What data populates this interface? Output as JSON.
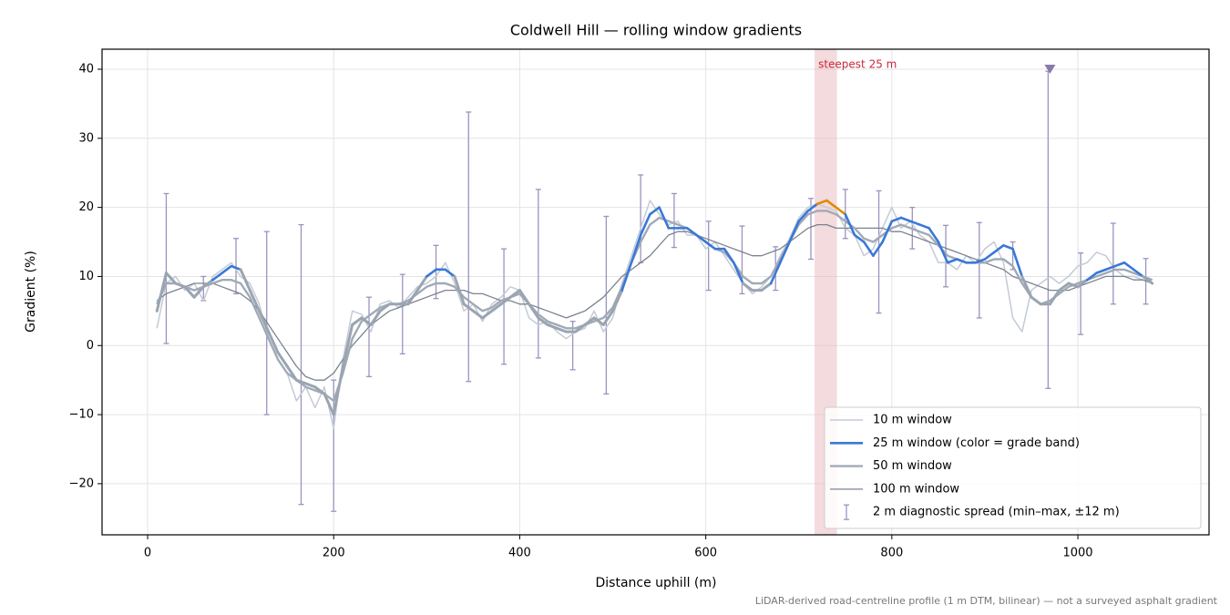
{
  "chart_data": {
    "type": "line",
    "title": "Coldwell Hill — rolling window gradients",
    "x_label": "Distance uphill (m)",
    "y_label": "Gradient (%)",
    "note": "LiDAR-derived road-centreline profile (1 m DTM, bilinear) — not a surveyed asphalt gradient",
    "x": [
      10,
      20,
      30,
      40,
      50,
      60,
      70,
      80,
      90,
      100,
      110,
      120,
      130,
      140,
      150,
      160,
      170,
      180,
      190,
      200,
      210,
      220,
      230,
      240,
      250,
      260,
      270,
      280,
      290,
      300,
      310,
      320,
      330,
      340,
      350,
      360,
      370,
      380,
      390,
      400,
      410,
      420,
      430,
      440,
      450,
      460,
      470,
      480,
      490,
      500,
      510,
      520,
      530,
      540,
      550,
      560,
      570,
      580,
      590,
      600,
      610,
      620,
      630,
      640,
      650,
      660,
      670,
      680,
      690,
      700,
      710,
      720,
      730,
      740,
      750,
      760,
      770,
      780,
      790,
      800,
      810,
      820,
      830,
      840,
      850,
      860,
      870,
      880,
      890,
      900,
      910,
      920,
      930,
      940,
      950,
      960,
      970,
      980,
      990,
      1000,
      1010,
      1020,
      1030,
      1040,
      1050,
      1060,
      1070,
      1080
    ],
    "series": [
      {
        "name": "10 m window",
        "color": "#c3cbd5",
        "values": [
          2.5,
          9,
          10,
          8,
          9,
          6.5,
          10,
          11,
          12,
          10,
          9,
          6,
          1,
          -2,
          -4,
          -8,
          -6,
          -9,
          -6,
          -12,
          -2,
          5,
          4.5,
          2,
          6,
          6.5,
          5.5,
          7,
          8.5,
          9,
          10,
          12,
          9,
          5,
          6,
          3.5,
          6,
          7,
          8.5,
          8,
          4,
          3,
          3.5,
          2,
          1,
          2,
          2.5,
          5,
          2,
          4,
          9,
          13,
          17,
          21,
          19,
          17.5,
          18,
          16,
          16,
          14,
          15,
          13,
          11,
          9,
          7.5,
          8.5,
          10,
          13,
          15.5,
          18.5,
          20,
          20.5,
          20,
          19.5,
          17,
          16,
          13,
          14,
          17,
          20,
          17,
          18,
          16,
          15,
          12,
          12,
          11,
          13,
          12,
          14,
          15,
          12,
          4,
          2,
          8,
          9,
          10,
          9,
          10,
          11.5,
          12,
          13.5,
          13,
          11,
          10,
          10,
          9.5,
          9
        ]
      },
      {
        "name": "25 m window (color = grade band)",
        "color": "#3a78d8",
        "below_color": "#9aa5b1",
        "band_threshold": 10,
        "values": [
          5,
          10.5,
          9,
          8.5,
          7,
          8.5,
          9.5,
          10.5,
          11.5,
          11,
          8,
          5,
          2,
          -1,
          -3,
          -5,
          -5.5,
          -6,
          -7,
          -10,
          -3,
          3,
          4,
          3,
          5,
          6,
          6,
          6,
          8,
          10,
          11,
          11,
          10,
          6,
          5,
          4,
          5,
          6,
          7,
          8,
          6,
          4,
          3,
          2.5,
          2,
          2,
          3,
          4,
          3,
          5,
          8,
          12,
          16,
          19,
          20,
          17,
          17,
          17,
          16,
          15,
          14,
          14,
          12,
          9,
          8,
          8,
          9,
          12,
          15,
          18,
          19.5,
          20.5,
          21,
          20,
          19,
          16,
          15,
          13,
          15,
          18,
          18.5,
          18,
          17.5,
          17,
          15,
          12,
          12.5,
          12,
          12,
          12.5,
          13.5,
          14.5,
          14,
          10,
          7,
          6,
          6,
          8,
          9,
          8.5,
          9.5,
          10.5,
          11,
          11.5,
          12,
          11,
          10,
          9
        ]
      },
      {
        "name": "50 m window",
        "color": "#a0aab6",
        "values": [
          6,
          9,
          9,
          8.5,
          8,
          8.5,
          9,
          9.5,
          9.5,
          9,
          7,
          4,
          1,
          -2,
          -4,
          -5,
          -6,
          -6.5,
          -7,
          -8,
          -4,
          1,
          3.5,
          4.5,
          5.5,
          6,
          6,
          6.5,
          7.5,
          8.5,
          9,
          9,
          8.5,
          7,
          6,
          5,
          5.5,
          6.5,
          7,
          7.5,
          6,
          4.5,
          3.5,
          3,
          2.5,
          2.5,
          3,
          3.5,
          4,
          5.5,
          8.5,
          12,
          15,
          17.5,
          18.5,
          18,
          17.5,
          17,
          16,
          15,
          14,
          13.5,
          12,
          10,
          9,
          9,
          10,
          12.5,
          15,
          17.5,
          19,
          19.5,
          19.5,
          19,
          18,
          17,
          15.5,
          15,
          16,
          17,
          17.5,
          17,
          16.5,
          16,
          14.5,
          13,
          12.5,
          12,
          12,
          12,
          12.5,
          12.5,
          11.5,
          9,
          7,
          6,
          6.5,
          7.5,
          8.5,
          9,
          9.5,
          10,
          10.5,
          11,
          11,
          10.5,
          10,
          9.5
        ]
      },
      {
        "name": "100 m window",
        "color": "#7b8390",
        "values": [
          6.5,
          7.5,
          8,
          8.5,
          9,
          9,
          9,
          8.5,
          8,
          7.5,
          6.5,
          5,
          3,
          1,
          -1,
          -3,
          -4.5,
          -5,
          -5,
          -4,
          -2,
          0,
          1.5,
          3,
          4,
          5,
          5.5,
          6,
          6.5,
          7,
          7.5,
          8,
          8,
          8,
          7.5,
          7.5,
          7,
          6.5,
          6.5,
          6,
          6,
          5.5,
          5,
          4.5,
          4,
          4.5,
          5,
          6,
          7,
          8.5,
          10,
          11,
          12,
          13,
          14.5,
          16,
          16.5,
          16.5,
          16,
          15.5,
          15,
          14.5,
          14,
          13.5,
          13,
          13,
          13.5,
          14,
          15,
          16,
          17,
          17.5,
          17.5,
          17,
          17,
          17,
          17,
          17,
          17,
          16.5,
          16.5,
          16,
          15.5,
          15,
          14.5,
          14,
          13.5,
          13,
          12.5,
          12,
          11.5,
          11,
          10,
          9.5,
          9,
          8.5,
          8,
          8,
          8,
          8.5,
          9,
          9.5,
          10,
          10,
          10,
          9.5,
          9.5,
          9
        ]
      }
    ],
    "spread": {
      "name": "2 m diagnostic spread (min–max, ±12 m)",
      "color": "#9b93c0",
      "x": [
        20,
        60,
        95,
        128,
        165,
        200,
        238,
        274,
        310,
        345,
        383,
        420,
        457,
        493,
        530,
        566,
        603,
        639,
        675,
        713,
        750,
        786,
        822,
        858,
        894,
        930,
        968,
        1003,
        1038,
        1073
      ],
      "min": [
        0.3,
        6.5,
        7.5,
        -10,
        -23,
        -24,
        -4.5,
        -1.2,
        6.8,
        -5.2,
        -2.7,
        -1.8,
        -3.5,
        -7,
        12,
        14.2,
        8,
        7.5,
        8,
        12.5,
        15.5,
        4.7,
        14,
        8.5,
        4,
        11,
        -6.2,
        1.6,
        6,
        6
      ],
      "max": [
        22,
        10,
        15.5,
        16.5,
        17.5,
        -5,
        7,
        10.3,
        14.5,
        33.8,
        14,
        22.6,
        3.5,
        18.7,
        24.7,
        22,
        18,
        17.3,
        14.3,
        21.3,
        22.6,
        22.4,
        20,
        17.4,
        17.8,
        15,
        39.7,
        13.4,
        17.7,
        12.6
      ]
    },
    "marker": {
      "x": 970,
      "y": 40,
      "color": "#8a7aaa"
    },
    "steepest": {
      "label": "steepest 25 m",
      "range": [
        717,
        741
      ],
      "color": "#e08a00",
      "shade": "#e9b7bc",
      "label_color": "#c8283a"
    },
    "xlim": [
      -49,
      1141
    ],
    "ylim": [
      -27.4,
      42.9
    ],
    "xticks": [
      0,
      200,
      400,
      600,
      800,
      1000
    ],
    "yticks": [
      {
        "value": -20,
        "label": "−20"
      },
      {
        "value": -10,
        "label": "−10"
      },
      0,
      10,
      20,
      30,
      40
    ],
    "grid": true,
    "legend": "lower right"
  }
}
